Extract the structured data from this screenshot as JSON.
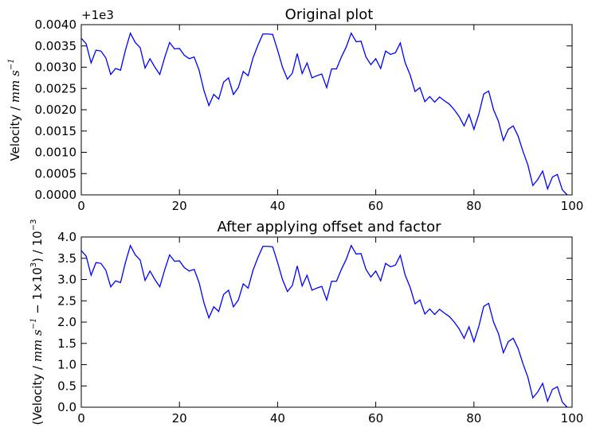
{
  "chart_data": [
    {
      "type": "line",
      "title": "Original plot",
      "ylabel_text": "Velocity",
      "ylabel_sep": " / ",
      "ylabel_unit": "mm s",
      "ylabel_unit_exp": "−1",
      "offset_text": "+1e3",
      "xlim": [
        0,
        100
      ],
      "ylim": [
        0.0,
        0.004
      ],
      "xticks": [
        "0",
        "20",
        "40",
        "60",
        "80",
        "100"
      ],
      "yticks": [
        "0.0000",
        "0.0005",
        "0.0010",
        "0.0015",
        "0.0020",
        "0.0025",
        "0.0030",
        "0.0035",
        "0.0040"
      ],
      "series": [
        {
          "color": "#0000ff",
          "x": [
            0,
            1,
            2,
            3,
            4,
            5,
            6,
            7,
            8,
            9,
            10,
            11,
            12,
            13,
            14,
            15,
            16,
            17,
            18,
            19,
            20,
            21,
            22,
            23,
            24,
            25,
            26,
            27,
            28,
            29,
            30,
            31,
            32,
            33,
            34,
            35,
            36,
            37,
            38,
            39,
            40,
            41,
            42,
            43,
            44,
            45,
            46,
            47,
            48,
            49,
            50,
            51,
            52,
            53,
            54,
            55,
            56,
            57,
            58,
            59,
            60,
            61,
            62,
            63,
            64,
            65,
            66,
            67,
            68,
            69,
            70,
            71,
            72,
            73,
            74,
            75,
            76,
            77,
            78,
            79,
            80,
            81,
            82,
            83,
            84,
            85,
            86,
            87,
            88,
            89,
            90,
            91,
            92,
            93,
            94,
            95,
            96,
            97,
            98,
            99
          ],
          "y": [
            0.00368,
            0.00355,
            0.0031,
            0.0034,
            0.00338,
            0.00322,
            0.00283,
            0.00297,
            0.00293,
            0.0034,
            0.0038,
            0.00358,
            0.00346,
            0.00298,
            0.0032,
            0.003,
            0.00283,
            0.00323,
            0.00358,
            0.00343,
            0.00344,
            0.00328,
            0.0032,
            0.00324,
            0.00293,
            0.00245,
            0.0021,
            0.00236,
            0.00225,
            0.00265,
            0.00275,
            0.00236,
            0.00252,
            0.0029,
            0.0028,
            0.00322,
            0.00352,
            0.00378,
            0.00378,
            0.00377,
            0.0034,
            0.003,
            0.00272,
            0.00286,
            0.00332,
            0.00285,
            0.0031,
            0.00275,
            0.0028,
            0.00284,
            0.00252,
            0.00296,
            0.00296,
            0.00324,
            0.00348,
            0.0038,
            0.0036,
            0.00361,
            0.00324,
            0.00306,
            0.0032,
            0.00297,
            0.00338,
            0.0033,
            0.00334,
            0.00357,
            0.0031,
            0.00282,
            0.00243,
            0.00252,
            0.00219,
            0.00231,
            0.00218,
            0.0023,
            0.00221,
            0.00213,
            0.002,
            0.00184,
            0.00162,
            0.00189,
            0.00154,
            0.0019,
            0.00237,
            0.00244,
            0.002,
            0.00173,
            0.00128,
            0.00154,
            0.00162,
            0.00138,
            0.00102,
            0.0007,
            0.00022,
            0.00036,
            0.00056,
            0.00014,
            0.00042,
            0.00048,
            0.00012,
            0.0
          ]
        }
      ]
    },
    {
      "type": "line",
      "title": "After applying offset and factor",
      "ylabel_open": "(",
      "ylabel_text": "Velocity",
      "ylabel_sep": " / ",
      "ylabel_unit": "mm s",
      "ylabel_unit_exp": "−1",
      "ylabel_minus": " − 1×10",
      "ylabel_minus_exp": "3",
      "ylabel_close": ")",
      "ylabel_factor": " / 10",
      "ylabel_factor_exp": "−3",
      "xlim": [
        0,
        100
      ],
      "ylim": [
        0.0,
        4.0
      ],
      "xticks": [
        "0",
        "20",
        "40",
        "60",
        "80",
        "100"
      ],
      "yticks": [
        "0.0",
        "0.5",
        "1.0",
        "1.5",
        "2.0",
        "2.5",
        "3.0",
        "3.5",
        "4.0"
      ],
      "series": [
        {
          "color": "#0000ff",
          "x": [
            0,
            1,
            2,
            3,
            4,
            5,
            6,
            7,
            8,
            9,
            10,
            11,
            12,
            13,
            14,
            15,
            16,
            17,
            18,
            19,
            20,
            21,
            22,
            23,
            24,
            25,
            26,
            27,
            28,
            29,
            30,
            31,
            32,
            33,
            34,
            35,
            36,
            37,
            38,
            39,
            40,
            41,
            42,
            43,
            44,
            45,
            46,
            47,
            48,
            49,
            50,
            51,
            52,
            53,
            54,
            55,
            56,
            57,
            58,
            59,
            60,
            61,
            62,
            63,
            64,
            65,
            66,
            67,
            68,
            69,
            70,
            71,
            72,
            73,
            74,
            75,
            76,
            77,
            78,
            79,
            80,
            81,
            82,
            83,
            84,
            85,
            86,
            87,
            88,
            89,
            90,
            91,
            92,
            93,
            94,
            95,
            96,
            97,
            98,
            99
          ],
          "y": [
            3.68,
            3.55,
            3.1,
            3.4,
            3.38,
            3.22,
            2.83,
            2.97,
            2.93,
            3.4,
            3.8,
            3.58,
            3.46,
            2.98,
            3.2,
            3.0,
            2.83,
            3.23,
            3.58,
            3.43,
            3.44,
            3.28,
            3.2,
            3.24,
            2.93,
            2.45,
            2.1,
            2.36,
            2.25,
            2.65,
            2.75,
            2.36,
            2.52,
            2.9,
            2.8,
            3.22,
            3.52,
            3.78,
            3.78,
            3.77,
            3.4,
            3.0,
            2.72,
            2.86,
            3.32,
            2.85,
            3.1,
            2.75,
            2.8,
            2.84,
            2.52,
            2.96,
            2.96,
            3.24,
            3.48,
            3.8,
            3.6,
            3.61,
            3.24,
            3.06,
            3.2,
            2.97,
            3.38,
            3.3,
            3.34,
            3.57,
            3.1,
            2.82,
            2.43,
            2.52,
            2.19,
            2.31,
            2.18,
            2.3,
            2.21,
            2.13,
            2.0,
            1.84,
            1.62,
            1.89,
            1.54,
            1.9,
            2.37,
            2.44,
            2.0,
            1.73,
            1.28,
            1.54,
            1.62,
            1.38,
            1.02,
            0.7,
            0.22,
            0.36,
            0.56,
            0.14,
            0.42,
            0.48,
            0.12,
            0.0
          ]
        }
      ]
    }
  ]
}
